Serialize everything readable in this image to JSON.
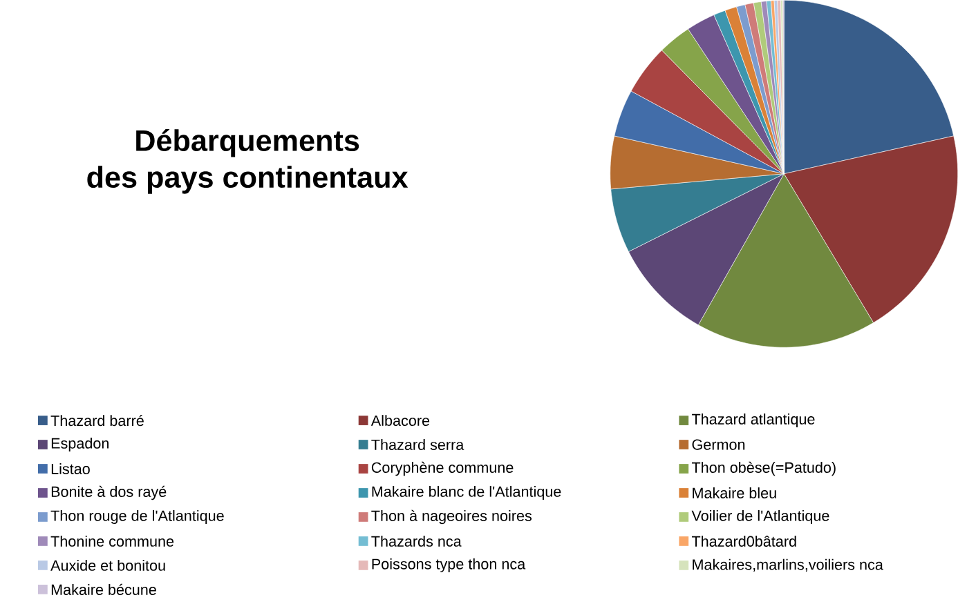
{
  "chart_data": {
    "type": "pie",
    "title": "Débarquements des pays continentaux",
    "legend": "bottom",
    "categories": [
      "Thazard barré",
      "Albacore",
      "Thazard atlantique",
      "Espadon",
      "Thazard serra",
      "Germon",
      "Listao",
      "Coryphène commune",
      "Thon obèse(=Patudo)",
      "Bonite à dos rayé",
      "Makaire blanc de l'Atlantique",
      "Makaire bleu",
      "Thon rouge de l'Atlantique",
      "Thon à nageoires noires",
      "Voilier de l'Atlantique",
      "Thonine commune",
      "Thazards nca",
      "Thazard0bâtard",
      "Auxide et bonitou",
      "Poissons type thon nca",
      "Makaires,marlins,voiliers nca",
      "Makaire bécune"
    ],
    "values": [
      21.5,
      19.9,
      16.8,
      9.4,
      6.0,
      4.9,
      4.4,
      4.7,
      3.1,
      2.7,
      1.1,
      1.1,
      0.8,
      0.8,
      0.7,
      0.5,
      0.4,
      0.3,
      0.3,
      0.3,
      0.2,
      0.1
    ],
    "colors": [
      "#385d8a",
      "#8c3836",
      "#71893f",
      "#5c4776",
      "#357d91",
      "#b66d31",
      "#426da9",
      "#a94442",
      "#86a44a",
      "#6e548d",
      "#3d96ae",
      "#da8137",
      "#7c9cce",
      "#cf7b79",
      "#b0cb7b",
      "#9f8ab9",
      "#74bdd3",
      "#f9a667",
      "#b9c9e5",
      "#e5b9b8",
      "#d6e3bc",
      "#ccc1da"
    ]
  }
}
